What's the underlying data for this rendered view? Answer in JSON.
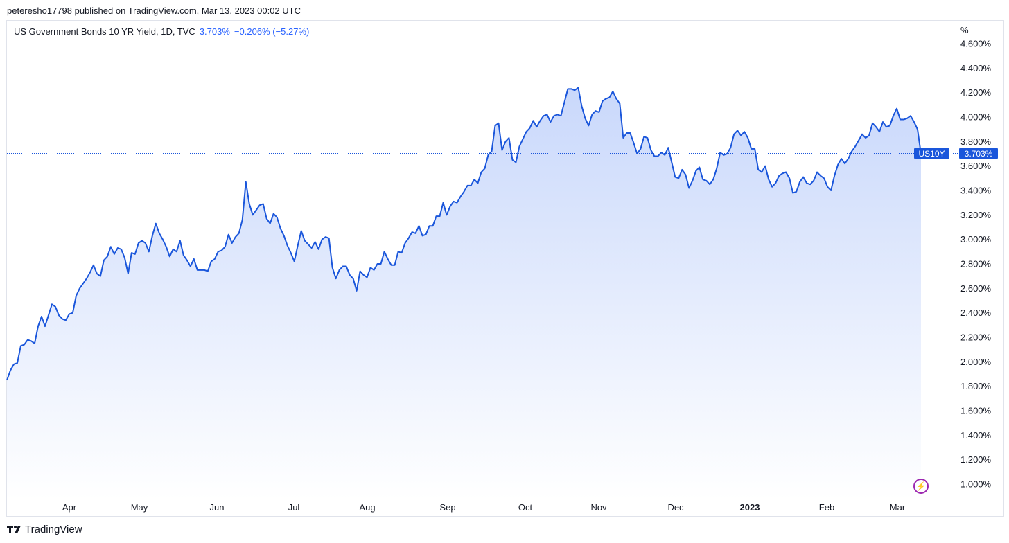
{
  "header": {
    "publisher_line": "peteresho17798 published on TradingView.com, Mar 13, 2023 00:02 UTC"
  },
  "legend": {
    "symbol": "US Government Bonds 10 YR Yield, 1D, TVC",
    "value": "3.703%",
    "change": "−0.206% (−5.27%)"
  },
  "price_tag": {
    "ticker": "US10Y",
    "value": "3.703%"
  },
  "footer": {
    "brand": "TradingView"
  },
  "colors": {
    "line": "#1a56db",
    "fill_top": "#c9d8fb",
    "fill_bottom": "#ffffff",
    "tag": "#1a56db",
    "flash": "#9c27b0"
  },
  "icons": {
    "logo": "tradingview-logo-icon",
    "flash": "lightning-icon"
  },
  "chart_data": {
    "type": "area",
    "unit_label": "%",
    "ylim": [
      0.9,
      4.65
    ],
    "y_ticks": [
      "4.600%",
      "4.400%",
      "4.200%",
      "4.000%",
      "3.800%",
      "3.600%",
      "3.400%",
      "3.200%",
      "3.000%",
      "2.800%",
      "2.600%",
      "2.400%",
      "2.200%",
      "2.000%",
      "1.800%",
      "1.600%",
      "1.400%",
      "1.200%",
      "1.000%"
    ],
    "x_ticks": [
      "Apr",
      "May",
      "Jun",
      "Jul",
      "Aug",
      "Sep",
      "Oct",
      "Nov",
      "Dec",
      "2023",
      "Feb",
      "Mar"
    ],
    "last_value": 3.703,
    "grid": false,
    "series": [
      {
        "values": [
          1.85,
          1.93,
          1.98,
          1.99,
          2.13,
          2.14,
          2.18,
          2.17,
          2.15,
          2.29,
          2.37,
          2.29,
          2.38,
          2.47,
          2.45,
          2.38,
          2.35,
          2.34,
          2.39,
          2.4,
          2.54,
          2.6,
          2.64,
          2.68,
          2.73,
          2.79,
          2.72,
          2.7,
          2.83,
          2.86,
          2.94,
          2.88,
          2.93,
          2.92,
          2.85,
          2.72,
          2.89,
          2.88,
          2.97,
          2.99,
          2.97,
          2.9,
          3.03,
          3.13,
          3.05,
          3.0,
          2.94,
          2.86,
          2.92,
          2.9,
          2.99,
          2.87,
          2.83,
          2.78,
          2.84,
          2.75,
          2.75,
          2.75,
          2.74,
          2.82,
          2.84,
          2.9,
          2.91,
          2.94,
          3.04,
          2.97,
          3.02,
          3.05,
          3.16,
          3.47,
          3.29,
          3.2,
          3.24,
          3.28,
          3.29,
          3.17,
          3.13,
          3.21,
          3.18,
          3.09,
          3.03,
          2.95,
          2.89,
          2.82,
          2.95,
          3.07,
          2.99,
          2.96,
          2.93,
          2.98,
          2.92,
          3.0,
          3.02,
          3.01,
          2.77,
          2.68,
          2.75,
          2.78,
          2.78,
          2.71,
          2.68,
          2.58,
          2.74,
          2.71,
          2.69,
          2.77,
          2.75,
          2.8,
          2.8,
          2.9,
          2.84,
          2.79,
          2.79,
          2.9,
          2.89,
          2.97,
          3.01,
          3.06,
          3.05,
          3.11,
          3.03,
          3.04,
          3.11,
          3.11,
          3.19,
          3.19,
          3.3,
          3.2,
          3.27,
          3.31,
          3.3,
          3.35,
          3.39,
          3.44,
          3.44,
          3.49,
          3.46,
          3.55,
          3.58,
          3.69,
          3.72,
          3.93,
          3.95,
          3.73,
          3.8,
          3.83,
          3.65,
          3.63,
          3.76,
          3.82,
          3.88,
          3.91,
          3.97,
          3.92,
          3.97,
          4.01,
          4.02,
          3.96,
          4.01,
          4.02,
          4.01,
          4.12,
          4.23,
          4.23,
          4.22,
          4.24,
          4.09,
          3.99,
          3.93,
          4.02,
          4.05,
          4.04,
          4.13,
          4.15,
          4.16,
          4.21,
          4.15,
          4.11,
          3.83,
          3.87,
          3.87,
          3.79,
          3.7,
          3.74,
          3.84,
          3.83,
          3.73,
          3.68,
          3.68,
          3.71,
          3.69,
          3.75,
          3.63,
          3.51,
          3.5,
          3.57,
          3.53,
          3.42,
          3.48,
          3.56,
          3.59,
          3.49,
          3.48,
          3.45,
          3.49,
          3.58,
          3.71,
          3.69,
          3.7,
          3.75,
          3.86,
          3.89,
          3.85,
          3.88,
          3.83,
          3.74,
          3.74,
          3.57,
          3.55,
          3.6,
          3.49,
          3.43,
          3.46,
          3.52,
          3.54,
          3.55,
          3.5,
          3.38,
          3.39,
          3.47,
          3.51,
          3.46,
          3.45,
          3.48,
          3.55,
          3.52,
          3.5,
          3.43,
          3.4,
          3.52,
          3.61,
          3.66,
          3.62,
          3.66,
          3.72,
          3.76,
          3.81,
          3.86,
          3.83,
          3.85,
          3.95,
          3.92,
          3.88,
          3.96,
          3.92,
          3.93,
          4.01,
          4.07,
          3.98,
          3.98,
          3.99,
          4.01,
          3.96,
          3.9,
          3.7
        ]
      }
    ]
  }
}
